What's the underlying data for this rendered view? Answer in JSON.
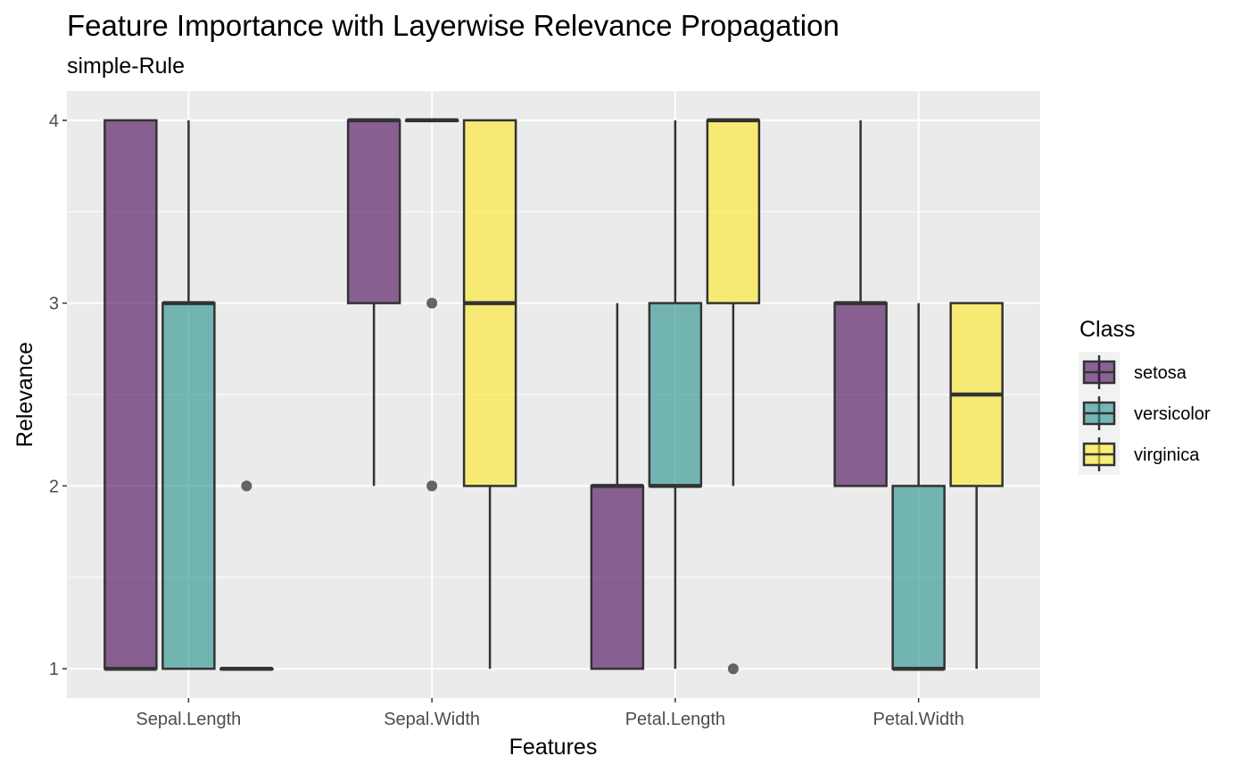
{
  "chart_data": {
    "type": "boxplot",
    "title": "Feature Importance with Layerwise Relevance Propagation",
    "subtitle": "simple-Rule",
    "xlabel": "Features",
    "ylabel": "Relevance",
    "ylim": [
      0.84,
      4.16
    ],
    "yticks": [
      1,
      2,
      3,
      4
    ],
    "grid": true,
    "legend": {
      "title": "Class",
      "position": "right"
    },
    "categories": [
      "Sepal.Length",
      "Sepal.Width",
      "Petal.Length",
      "Petal.Width"
    ],
    "series": [
      {
        "name": "setosa",
        "color": "#440154",
        "boxes": [
          {
            "low": 1,
            "q1": 1,
            "median": 1,
            "q3": 4,
            "high": 4,
            "outliers": []
          },
          {
            "low": 2,
            "q1": 3,
            "median": 4,
            "q3": 4,
            "high": 4,
            "outliers": []
          },
          {
            "low": 1,
            "q1": 1,
            "median": 2,
            "q3": 2,
            "high": 3,
            "outliers": []
          },
          {
            "low": 2,
            "q1": 2,
            "median": 3,
            "q3": 3,
            "high": 4,
            "outliers": []
          }
        ]
      },
      {
        "name": "versicolor",
        "color": "#21908C",
        "boxes": [
          {
            "low": 1,
            "q1": 1,
            "median": 3,
            "q3": 3,
            "high": 4,
            "outliers": []
          },
          {
            "low": 4,
            "q1": 4,
            "median": 4,
            "q3": 4,
            "high": 4,
            "outliers": [
              3,
              2
            ]
          },
          {
            "low": 1,
            "q1": 2,
            "median": 2,
            "q3": 3,
            "high": 4,
            "outliers": []
          },
          {
            "low": 1,
            "q1": 1,
            "median": 1,
            "q3": 2,
            "high": 3,
            "outliers": []
          }
        ]
      },
      {
        "name": "virginica",
        "color": "#FDE725",
        "boxes": [
          {
            "low": 1,
            "q1": 1,
            "median": 1,
            "q3": 1,
            "high": 1,
            "outliers": [
              2
            ]
          },
          {
            "low": 1,
            "q1": 2,
            "median": 3,
            "q3": 4,
            "high": 4,
            "outliers": []
          },
          {
            "low": 2,
            "q1": 3,
            "median": 4,
            "q3": 4,
            "high": 4,
            "outliers": [
              1
            ]
          },
          {
            "low": 1,
            "q1": 2,
            "median": 2.5,
            "q3": 3,
            "high": 3,
            "outliers": []
          }
        ]
      }
    ]
  }
}
